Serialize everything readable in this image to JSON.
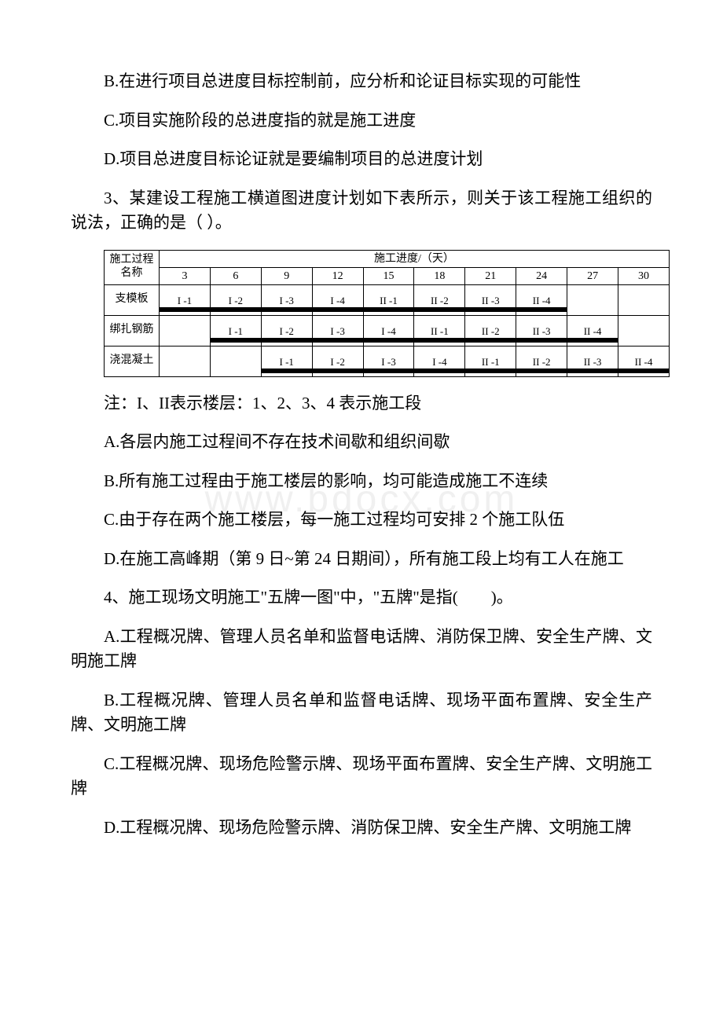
{
  "q2": {
    "optB": "B.在进行项目总进度目标控制前，应分析和论证目标实现的可能性",
    "optC": "C.项目实施阶段的总进度指的就是施工进度",
    "optD": "D.项目总进度目标论证就是要编制项目的总进度计划"
  },
  "q3": {
    "stem": "3、某建设工程施工横道图进度计划如下表所示，则关于该工程施工组织的说法，正确的是（ ）。",
    "note": "注：I、II表示楼层：1、2、3、4 表示施工段",
    "optA": "A.各层内施工过程间不存在技术间歇和组织间歇",
    "optB": "B.所有施工过程由于施工楼层的影响，均可能造成施工不连续",
    "optC": "C.由于存在两个施工楼层，每一施工过程均可安排 2 个施工队伍",
    "optD": "D.在施工高峰期（第 9 日~第 24 日期间），所有施工段上均有工人在施工"
  },
  "q4": {
    "stem": "4、施工现场文明施工\"五牌一图\"中，\"五牌\"是指(　　)。",
    "optA": "A.工程概况牌、管理人员名单和监督电话牌、消防保卫牌、安全生产牌、文明施工牌",
    "optB": "B.工程概况牌、管理人员名单和监督电话牌、现场平面布置牌、安全生产牌、文明施工牌",
    "optC": "C.工程概况牌、现场危险警示牌、现场平面布置牌、安全生产牌、文明施工牌",
    "optD": "D.工程概况牌、现场危险警示牌、消防保卫牌、安全生产牌、文明施工牌"
  },
  "gantt": {
    "type": "bar-chart-gantt",
    "header_title_left": "施工过程名称",
    "header_title_right": "施工进度/（天）",
    "day_columns": [
      "3",
      "6",
      "9",
      "12",
      "15",
      "18",
      "21",
      "24",
      "27",
      "30"
    ],
    "rows": [
      {
        "name": "支模板",
        "cells": [
          "I -1",
          "I -2",
          "I -3",
          "I -4",
          "II -1",
          "II -2",
          "II -3",
          "II -4",
          "",
          ""
        ]
      },
      {
        "name": "绑扎钢筋",
        "cells": [
          "",
          "I -1",
          "I -2",
          "I -3",
          "I -4",
          "II -1",
          "II -2",
          "II -3",
          "II -4",
          ""
        ]
      },
      {
        "name": "浇混凝土",
        "cells": [
          "",
          "",
          "I -1",
          "I -2",
          "I -3",
          "I -4",
          "II -1",
          "II -2",
          "II -3",
          "II -4"
        ]
      }
    ],
    "bar_color": "#000000",
    "border_color": "#000000",
    "background_color": "#ffffff",
    "cell_fontsize": 13,
    "header_fontsize": 14
  },
  "watermark": "www.bdocx.com"
}
